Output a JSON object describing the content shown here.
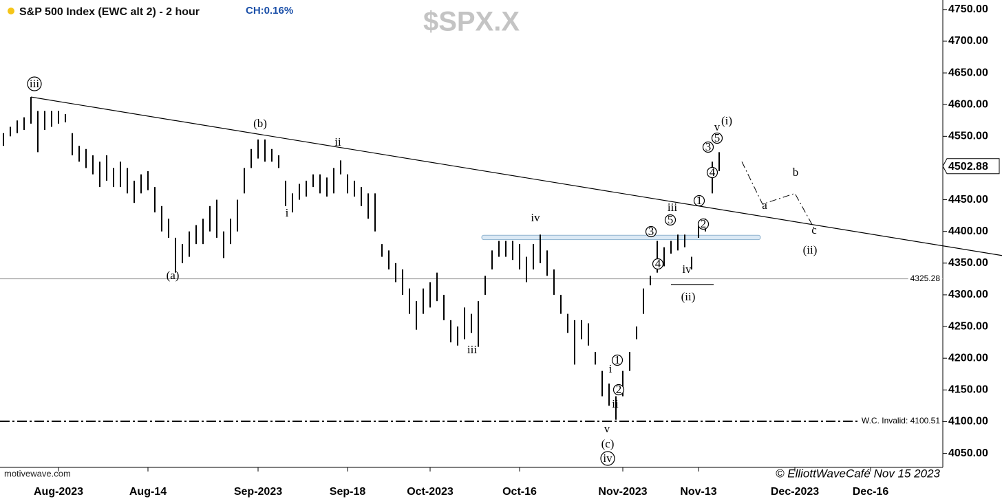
{
  "chart_data": {
    "type": "ohlc",
    "title": "S&P 500 Index (EWC alt 2) - 2 hour",
    "change_label": "CH:0.16%",
    "watermark": "$SPX.X",
    "source": "motivewave.com",
    "credit": "© ElliottWaveCafé Nov 15 2023",
    "color": "#000000",
    "ylim": [
      4030,
      4765
    ],
    "yticks": [
      {
        "value": 4050,
        "label": "4050.00"
      },
      {
        "value": 4100,
        "label": "4100.00"
      },
      {
        "value": 4150,
        "label": "4150.00"
      },
      {
        "value": 4200,
        "label": "4200.00"
      },
      {
        "value": 4250,
        "label": "4250.00"
      },
      {
        "value": 4300,
        "label": "4300.00"
      },
      {
        "value": 4350,
        "label": "4350.00"
      },
      {
        "value": 4400,
        "label": "4400.00"
      },
      {
        "value": 4450,
        "label": "4450.00"
      },
      {
        "value": 4500,
        "label": "4500.00"
      },
      {
        "value": 4550,
        "label": "4550.00"
      },
      {
        "value": 4600,
        "label": "4600.00"
      },
      {
        "value": 4650,
        "label": "4650.00"
      },
      {
        "value": 4700,
        "label": "4700.00"
      },
      {
        "value": 4750,
        "label": "4750.00"
      }
    ],
    "categories": [
      null,
      null,
      null,
      null,
      null,
      null,
      null,
      null,
      "Aug-2023",
      null,
      null,
      null,
      null,
      null,
      null,
      null,
      null,
      null,
      null,
      null,
      null,
      "Aug-14",
      null,
      null,
      null,
      null,
      null,
      null,
      null,
      null,
      null,
      null,
      null,
      null,
      null,
      null,
      null,
      "Sep-2023",
      null,
      null,
      null,
      null,
      null,
      null,
      null,
      null,
      null,
      null,
      null,
      null,
      "Sep-18",
      null,
      null,
      null,
      null,
      null,
      null,
      null,
      null,
      null,
      null,
      null,
      "Oct-2023",
      null,
      null,
      null,
      null,
      null,
      null,
      null,
      null,
      null,
      null,
      null,
      null,
      "Oct-16",
      null,
      null,
      null,
      null,
      null,
      null,
      null,
      null,
      null,
      null,
      null,
      null,
      null,
      null,
      "Nov-2023",
      null,
      null,
      null,
      null,
      null,
      null,
      null,
      null,
      null,
      null,
      "Nov-13",
      null,
      null,
      null,
      null,
      null,
      null,
      null,
      null,
      null,
      null,
      null,
      null,
      null,
      "Dec-2023",
      null,
      null,
      null,
      null,
      null,
      null,
      null,
      null,
      null,
      null,
      "Dec-16",
      null,
      null,
      null,
      null,
      null,
      null,
      null,
      null,
      null,
      null
    ],
    "high": [
      4555,
      4565,
      4575,
      4580,
      4612,
      4590,
      4590,
      4590,
      4590,
      4585,
      4555,
      4535,
      4530,
      4520,
      4510,
      4520,
      4500,
      4510,
      4500,
      4480,
      4490,
      4495,
      4470,
      4440,
      4420,
      4390,
      4380,
      4400,
      4410,
      4420,
      4440,
      4450,
      4400,
      4420,
      4450,
      4500,
      4530,
      4545,
      4545,
      4530,
      4520,
      4480,
      4460,
      4475,
      4480,
      4490,
      4490,
      4485,
      4500,
      4512,
      4490,
      4480,
      4470,
      4460,
      4460,
      4380,
      4370,
      4350,
      4340,
      4310,
      4290,
      4310,
      4320,
      4335,
      4300,
      4260,
      4250,
      4280,
      4270,
      4290,
      4330,
      4370,
      4385,
      4385,
      4385,
      4380,
      4360,
      4380,
      4395,
      4370,
      4340,
      4300,
      4270,
      4260,
      4260,
      4255,
      4210,
      4180,
      4160,
      4140,
      4180,
      4210,
      4250,
      4310,
      4330,
      4385,
      4375,
      4385,
      4395,
      4395,
      4360,
      4415,
      4420,
      4510,
      4525,
      null,
      null,
      null,
      null,
      null,
      null,
      null,
      null,
      null,
      null,
      null,
      null,
      null,
      null,
      null,
      null,
      null,
      null,
      null,
      null,
      null,
      null,
      null,
      null,
      null,
      null,
      null,
      null,
      null,
      null,
      null,
      null
    ],
    "low": [
      4535,
      4550,
      4555,
      4560,
      4570,
      4525,
      4560,
      4565,
      4570,
      4572,
      4520,
      4510,
      4500,
      4490,
      4470,
      4480,
      4470,
      4470,
      4460,
      4445,
      4460,
      4465,
      4430,
      4400,
      4390,
      4335,
      4350,
      4360,
      4380,
      4380,
      4400,
      4390,
      4358,
      4380,
      4400,
      4460,
      4500,
      4515,
      4510,
      4510,
      4500,
      4440,
      4430,
      4450,
      4455,
      4470,
      4460,
      4455,
      4460,
      4490,
      4460,
      4455,
      4440,
      4420,
      4400,
      4360,
      4340,
      4320,
      4300,
      4270,
      4245,
      4270,
      4280,
      4290,
      4260,
      4225,
      4220,
      4230,
      4240,
      4218,
      4300,
      4340,
      4360,
      4360,
      4355,
      4340,
      4320,
      4340,
      4350,
      4330,
      4300,
      4270,
      4240,
      4190,
      4230,
      4220,
      4190,
      4140,
      4125,
      4103,
      4140,
      4180,
      4230,
      4270,
      4315,
      4335,
      4345,
      4365,
      4370,
      4375,
      4340,
      4390,
      4400,
      4460,
      4495,
      null,
      null,
      null,
      null,
      null,
      null,
      null,
      null,
      null,
      null,
      null,
      null,
      null,
      null,
      null,
      null,
      null,
      null,
      null,
      null,
      null,
      null,
      null,
      null,
      null,
      null,
      null,
      null,
      null,
      null,
      null,
      null
    ],
    "last": 4502.88,
    "levels": [
      {
        "value": 4325.28,
        "style": "solid"
      },
      {
        "value": 4100.51,
        "label": "W.C. Invalid: 4100.51",
        "style": "dashdot"
      }
    ],
    "trendline": [
      4612,
      4362
    ],
    "zone": [
      4387,
      4394
    ],
    "projection": [
      4510,
      4443,
      4460,
      4405
    ],
    "annotations": [
      {
        "text": "iii",
        "circled": true
      },
      {
        "text": "(b)",
        "circled": false
      },
      {
        "text": "ii",
        "circled": false
      },
      {
        "text": "i",
        "circled": false
      },
      {
        "text": "(a)",
        "circled": false
      },
      {
        "text": "iii",
        "circled": false
      },
      {
        "text": "iv",
        "circled": false
      },
      {
        "text": "i",
        "circled": false
      },
      {
        "text": "1",
        "circled": true
      },
      {
        "text": "2",
        "circled": true
      },
      {
        "text": "ii",
        "circled": false
      },
      {
        "text": "v",
        "circled": false
      },
      {
        "text": "(c)",
        "circled": false
      },
      {
        "text": "iv",
        "circled": true
      },
      {
        "text": "3",
        "circled": true
      },
      {
        "text": "4",
        "circled": true
      },
      {
        "text": "5",
        "circled": true
      },
      {
        "text": "iii",
        "circled": false
      },
      {
        "text": "iv",
        "circled": false
      },
      {
        "text": "(ii)",
        "circled": false
      },
      {
        "text": "1",
        "circled": true
      },
      {
        "text": "2",
        "circled": true
      },
      {
        "text": "3",
        "circled": true
      },
      {
        "text": "5",
        "circled": true
      },
      {
        "text": "4",
        "circled": true
      },
      {
        "text": "v",
        "circled": false
      },
      {
        "text": "(i)",
        "circled": false
      },
      {
        "text": "a",
        "circled": false
      },
      {
        "text": "b",
        "circled": false
      },
      {
        "text": "c",
        "circled": false
      },
      {
        "text": "(ii)",
        "circled": false
      }
    ]
  }
}
